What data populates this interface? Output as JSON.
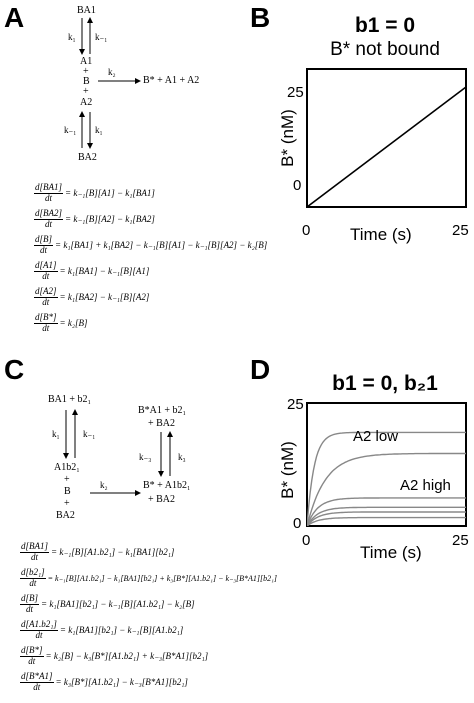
{
  "panels": {
    "a": {
      "letter": "A",
      "scheme": {
        "ba1": "BA1",
        "k1_left": "k₁",
        "km1_right": "k₋₁",
        "a1": "A1",
        "plus1": "+",
        "b": "B",
        "plus2": "+",
        "a2": "A2",
        "k2": "k₂",
        "product": "B* + A1 + A2",
        "km1_left": "k₋₁",
        "k1_right": "k₁",
        "ba2": "BA2"
      },
      "equations": [
        {
          "num": "d[BA1]",
          "den": "dt",
          "rhs": "= k₋₁[B][A1] − k₁[BA1]"
        },
        {
          "num": "d[BA2]",
          "den": "dt",
          "rhs": "= k₋₁[B][A2] − k₁[BA2]"
        },
        {
          "num": "d[B]",
          "den": "dt",
          "rhs": "= k₁[BA1] + k₁[BA2] − k₋₁[B][A1] − k₋₁[B][A2] − k₂[B]"
        },
        {
          "num": "d[A1]",
          "den": "dt",
          "rhs": "= k₁[BA1] − k₋₁[B][A1]"
        },
        {
          "num": "d[A2]",
          "den": "dt",
          "rhs": "= k₁[BA2] − k₋₁[B][A2]"
        },
        {
          "num": "d[B*]",
          "den": "dt",
          "rhs": "= k₂[B]"
        }
      ]
    },
    "b": {
      "letter": "B",
      "title": "b1 = 0",
      "subtitle": "B* not bound",
      "ylabel": "B* (nM)",
      "xlabel": "Time (s)"
    },
    "c": {
      "letter": "C",
      "scheme": {
        "ba1_b21": "BA1 + b2₁",
        "k1": "k₁",
        "km1": "k₋₁",
        "a1b21": "A1b2₁",
        "plus1": "+",
        "b": "B",
        "plus2": "+",
        "ba2": "BA2",
        "k2": "k₂",
        "product_line1": "B* + A1b2₁",
        "product_line2": "+ BA2",
        "top_line1": "B*A1 + b2₁",
        "top_line2": "+ BA2",
        "km3": "k₋₃",
        "k3": "k₃"
      },
      "equations": [
        {
          "num": "d[BA1]",
          "den": "dt",
          "rhs": "= k₋₁[B][A1.b2₁] − k₁[BA1][b2₁]"
        },
        {
          "num": "d[b2₁]",
          "den": "dt",
          "rhs": "= k₋₁[B][A1.b2₁] − k₁[BA1][b2₁] + k₃[B*][A1.b2₁] − k₋₃[B*A1][b2₁]"
        },
        {
          "num": "d[B]",
          "den": "dt",
          "rhs": "= k₁[BA1][b2₁] − k₋₁[B][A1.b2₁] − k₂[B]"
        },
        {
          "num": "d[A1.b2₁]",
          "den": "dt",
          "rhs": "= k₁[BA1][b2₁] − k₋₁[B][A1.b2₁]"
        },
        {
          "num": "d[B*]",
          "den": "dt",
          "rhs": "= k₂[B] − k₃[B*][A1.b2₁] + k₋₃[B*A1][b2₁]"
        },
        {
          "num": "d[B*A1]",
          "den": "dt",
          "rhs": "= k₃[B*][A1.b2₁] − k₋₃[B*A1][b2₁]"
        }
      ]
    },
    "d": {
      "letter": "D",
      "title": "b1 = 0, b₂1",
      "ylabel": "B* (nM)",
      "xlabel": "Time (s)",
      "label_low": "A2 low",
      "label_high": "A2 high"
    }
  },
  "chart_data": [
    {
      "type": "line",
      "title": "b1 = 0",
      "subtitle": "B* not bound",
      "xlabel": "Time (s)",
      "ylabel": "B* (nM)",
      "xlim": [
        0,
        25
      ],
      "ylim": [
        0,
        25
      ],
      "xticks": [
        "0",
        "25"
      ],
      "yticks": [
        "0",
        "25"
      ],
      "series": [
        {
          "x": [
            0,
            25
          ],
          "values": [
            0,
            25
          ],
          "color": "#000000"
        }
      ]
    },
    {
      "type": "line",
      "title": "b1 = 0, b₂1",
      "xlabel": "Time (s)",
      "ylabel": "B* (nM)",
      "xlim": [
        0,
        25
      ],
      "ylim": [
        0,
        25
      ],
      "xticks": [
        "0",
        "25"
      ],
      "yticks": [
        "0",
        "25"
      ],
      "annotations": [
        "A2 low",
        "A2 high"
      ],
      "series": [
        {
          "plateau": 20,
          "rate": 0.9,
          "color": "#888888"
        },
        {
          "plateau": 15.5,
          "rate": 0.35,
          "color": "#888888"
        },
        {
          "plateau": 6,
          "rate": 0.6,
          "color": "#888888"
        },
        {
          "plateau": 4,
          "rate": 0.6,
          "color": "#888888"
        },
        {
          "plateau": 3,
          "rate": 0.6,
          "color": "#888888"
        },
        {
          "plateau": 1.8,
          "rate": 0.6,
          "color": "#888888"
        }
      ]
    }
  ]
}
